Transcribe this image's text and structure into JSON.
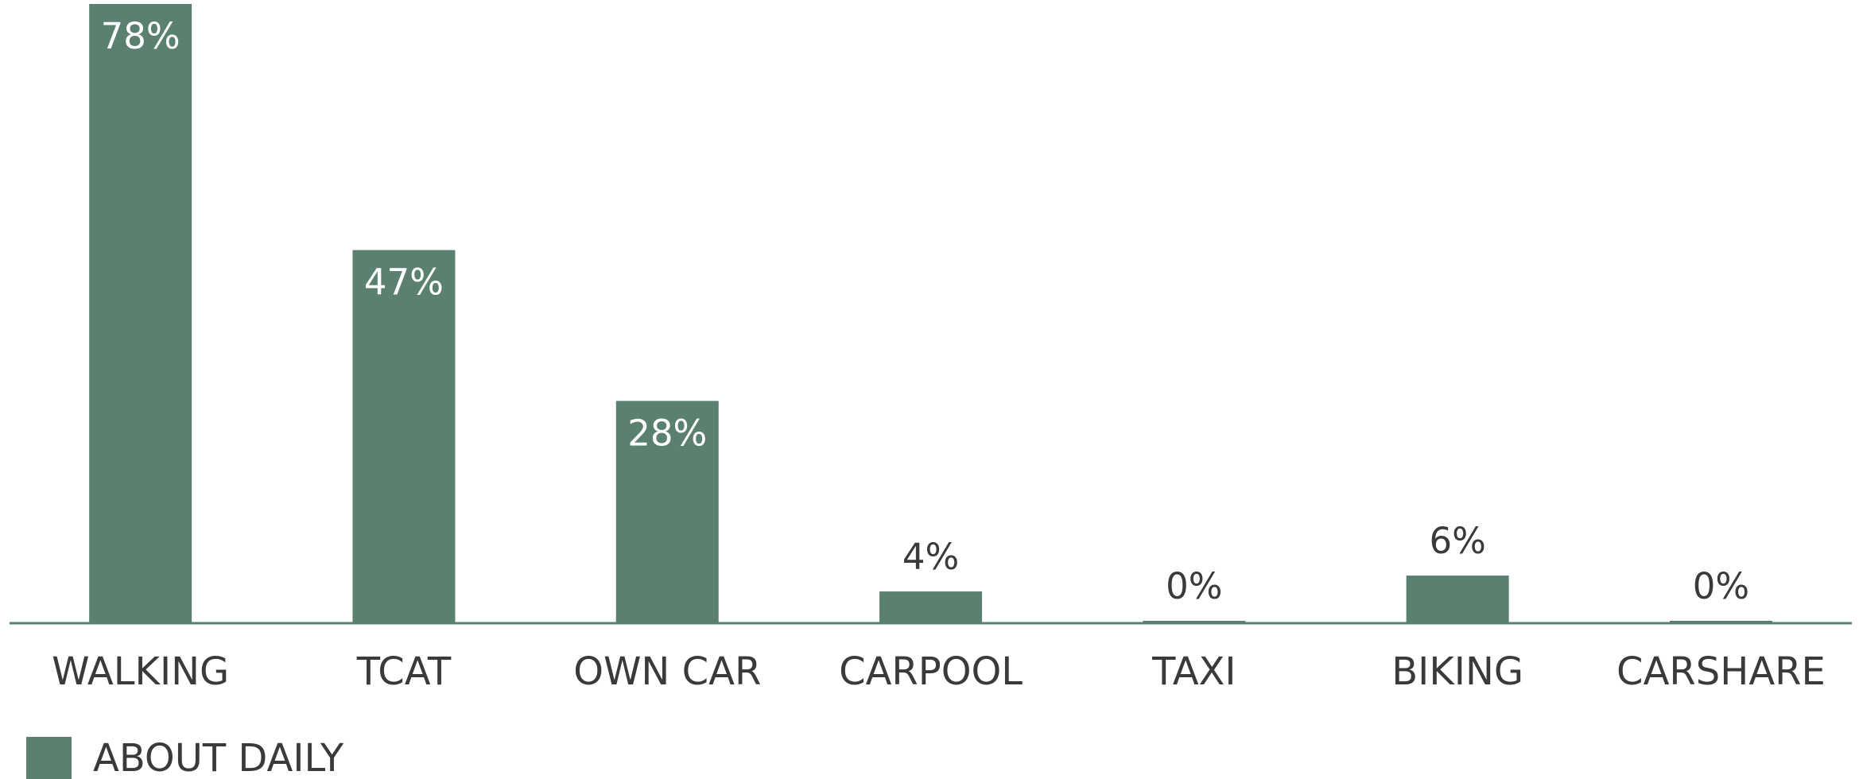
{
  "chart_data": {
    "type": "bar",
    "categories": [
      "WALKING",
      "TCAT",
      "OWN CAR",
      "CARPOOL",
      "TAXI",
      "BIKING",
      "CARSHARE"
    ],
    "series": [
      {
        "name": "ABOUT DAILY",
        "color": "#5a8070",
        "values": [
          78,
          47,
          28,
          4,
          0,
          6,
          0
        ],
        "value_labels": [
          "78%",
          "47%",
          "28%",
          "4%",
          "0%",
          "6%",
          "0%"
        ]
      }
    ],
    "legend": "bottom-left"
  }
}
